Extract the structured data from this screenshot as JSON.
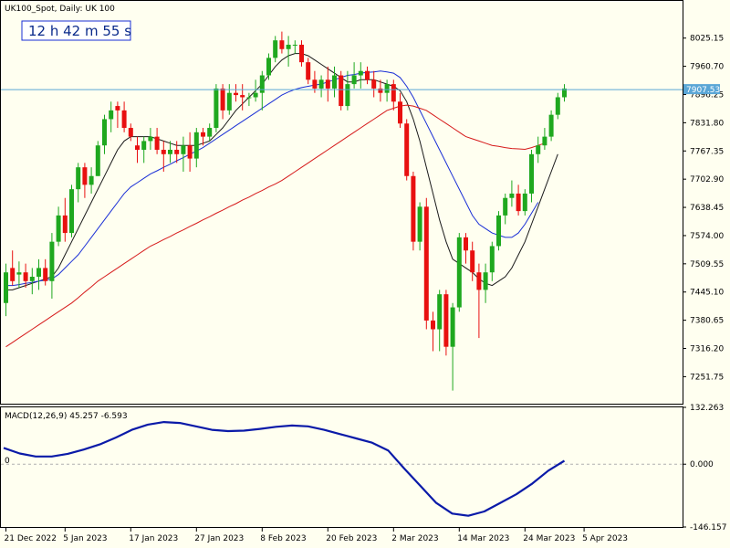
{
  "symbol_label": "UK100_Spot, Daily:  UK 100",
  "timer_label": "12 h 42 m 55 s",
  "colors": {
    "background": "#fffff0",
    "bull": "#1fa81f",
    "bear": "#e81010",
    "ma_fast": "#1a1a1a",
    "ma_mid": "#1a2fd6",
    "ma_slow": "#d61a1a",
    "macd": "#0a1aa8",
    "current_line": "#5aa6d6",
    "timer_border": "#1a2fd6"
  },
  "chart_data": [
    {
      "type": "candlestick",
      "y_ticks": [
        "8025.15",
        "7960.70",
        "7896.25",
        "7831.80",
        "7767.35",
        "7702.90",
        "7638.45",
        "7574.00",
        "7509.55",
        "7445.10",
        "7380.65",
        "7316.20",
        "7251.75"
      ],
      "ylim": [
        7190,
        8108
      ],
      "current_price": 7907.53,
      "current_price_label": "7907.53",
      "x_ticks": [
        {
          "label": "21 Dec 2022",
          "index": 0
        },
        {
          "label": "5 Jan 2023",
          "index": 9
        },
        {
          "label": "17 Jan 2023",
          "index": 19
        },
        {
          "label": "27 Jan 2023",
          "index": 29
        },
        {
          "label": "8 Feb 2023",
          "index": 39
        },
        {
          "label": "20 Feb 2023",
          "index": 49
        },
        {
          "label": "2 Mar 2023",
          "index": 59
        },
        {
          "label": "14 Mar 2023",
          "index": 69
        },
        {
          "label": "24 Mar 2023",
          "index": 79
        },
        {
          "label": "5 Apr 2023",
          "index": 88
        }
      ],
      "candles": [
        {
          "o": 7420,
          "h": 7510,
          "l": 7390,
          "c": 7490
        },
        {
          "o": 7500,
          "h": 7540,
          "l": 7460,
          "c": 7470
        },
        {
          "o": 7485,
          "h": 7515,
          "l": 7455,
          "c": 7490
        },
        {
          "o": 7490,
          "h": 7510,
          "l": 7455,
          "c": 7470
        },
        {
          "o": 7470,
          "h": 7500,
          "l": 7440,
          "c": 7480
        },
        {
          "o": 7480,
          "h": 7520,
          "l": 7450,
          "c": 7500
        },
        {
          "o": 7500,
          "h": 7520,
          "l": 7460,
          "c": 7470
        },
        {
          "o": 7470,
          "h": 7580,
          "l": 7430,
          "c": 7560
        },
        {
          "o": 7560,
          "h": 7640,
          "l": 7550,
          "c": 7620
        },
        {
          "o": 7620,
          "h": 7660,
          "l": 7560,
          "c": 7580
        },
        {
          "o": 7580,
          "h": 7690,
          "l": 7570,
          "c": 7680
        },
        {
          "o": 7680,
          "h": 7740,
          "l": 7650,
          "c": 7730
        },
        {
          "o": 7730,
          "h": 7740,
          "l": 7660,
          "c": 7690
        },
        {
          "o": 7690,
          "h": 7730,
          "l": 7670,
          "c": 7710
        },
        {
          "o": 7710,
          "h": 7790,
          "l": 7710,
          "c": 7780
        },
        {
          "o": 7780,
          "h": 7850,
          "l": 7760,
          "c": 7840
        },
        {
          "o": 7840,
          "h": 7880,
          "l": 7810,
          "c": 7860
        },
        {
          "o": 7870,
          "h": 7880,
          "l": 7820,
          "c": 7860
        },
        {
          "o": 7860,
          "h": 7880,
          "l": 7810,
          "c": 7820
        },
        {
          "o": 7820,
          "h": 7830,
          "l": 7790,
          "c": 7800
        },
        {
          "o": 7780,
          "h": 7800,
          "l": 7740,
          "c": 7770
        },
        {
          "o": 7770,
          "h": 7800,
          "l": 7740,
          "c": 7790
        },
        {
          "o": 7790,
          "h": 7820,
          "l": 7770,
          "c": 7800
        },
        {
          "o": 7800,
          "h": 7820,
          "l": 7760,
          "c": 7770
        },
        {
          "o": 7770,
          "h": 7790,
          "l": 7720,
          "c": 7760
        },
        {
          "o": 7760,
          "h": 7790,
          "l": 7740,
          "c": 7770
        },
        {
          "o": 7770,
          "h": 7790,
          "l": 7740,
          "c": 7760
        },
        {
          "o": 7760,
          "h": 7800,
          "l": 7720,
          "c": 7780
        },
        {
          "o": 7780,
          "h": 7810,
          "l": 7720,
          "c": 7750
        },
        {
          "o": 7750,
          "h": 7820,
          "l": 7730,
          "c": 7810
        },
        {
          "o": 7810,
          "h": 7820,
          "l": 7780,
          "c": 7800
        },
        {
          "o": 7800,
          "h": 7830,
          "l": 7790,
          "c": 7820
        },
        {
          "o": 7820,
          "h": 7920,
          "l": 7810,
          "c": 7910
        },
        {
          "o": 7910,
          "h": 7920,
          "l": 7840,
          "c": 7860
        },
        {
          "o": 7860,
          "h": 7920,
          "l": 7850,
          "c": 7900
        },
        {
          "o": 7900,
          "h": 7920,
          "l": 7880,
          "c": 7895
        },
        {
          "o": 7895,
          "h": 7920,
          "l": 7860,
          "c": 7890
        },
        {
          "o": 7890,
          "h": 7900,
          "l": 7870,
          "c": 7890
        },
        {
          "o": 7890,
          "h": 7930,
          "l": 7880,
          "c": 7900
        },
        {
          "o": 7900,
          "h": 7950,
          "l": 7860,
          "c": 7940
        },
        {
          "o": 7940,
          "h": 7990,
          "l": 7930,
          "c": 7980
        },
        {
          "o": 7980,
          "h": 8030,
          "l": 7970,
          "c": 8020
        },
        {
          "o": 8020,
          "h": 8040,
          "l": 7990,
          "c": 8000
        },
        {
          "o": 8000,
          "h": 8030,
          "l": 7960,
          "c": 8010
        },
        {
          "o": 8010,
          "h": 8020,
          "l": 7990,
          "c": 8010
        },
        {
          "o": 8010,
          "h": 8020,
          "l": 7960,
          "c": 7970
        },
        {
          "o": 7970,
          "h": 7980,
          "l": 7920,
          "c": 7930
        },
        {
          "o": 7930,
          "h": 7950,
          "l": 7900,
          "c": 7910
        },
        {
          "o": 7910,
          "h": 7940,
          "l": 7890,
          "c": 7930
        },
        {
          "o": 7930,
          "h": 7960,
          "l": 7880,
          "c": 7910
        },
        {
          "o": 7910,
          "h": 7960,
          "l": 7890,
          "c": 7940
        },
        {
          "o": 7940,
          "h": 7950,
          "l": 7860,
          "c": 7870
        },
        {
          "o": 7870,
          "h": 7950,
          "l": 7860,
          "c": 7920
        },
        {
          "o": 7920,
          "h": 7970,
          "l": 7910,
          "c": 7940
        },
        {
          "o": 7940,
          "h": 7970,
          "l": 7910,
          "c": 7950
        },
        {
          "o": 7950,
          "h": 7960,
          "l": 7920,
          "c": 7930
        },
        {
          "o": 7930,
          "h": 7950,
          "l": 7890,
          "c": 7910
        },
        {
          "o": 7910,
          "h": 7930,
          "l": 7880,
          "c": 7900
        },
        {
          "o": 7900,
          "h": 7930,
          "l": 7880,
          "c": 7920
        },
        {
          "o": 7920,
          "h": 7930,
          "l": 7860,
          "c": 7880
        },
        {
          "o": 7880,
          "h": 7900,
          "l": 7820,
          "c": 7830
        },
        {
          "o": 7830,
          "h": 7840,
          "l": 7700,
          "c": 7710
        },
        {
          "o": 7710,
          "h": 7720,
          "l": 7540,
          "c": 7560
        },
        {
          "o": 7560,
          "h": 7650,
          "l": 7540,
          "c": 7640
        },
        {
          "o": 7640,
          "h": 7660,
          "l": 7360,
          "c": 7380
        },
        {
          "o": 7380,
          "h": 7400,
          "l": 7310,
          "c": 7360
        },
        {
          "o": 7360,
          "h": 7450,
          "l": 7310,
          "c": 7440
        },
        {
          "o": 7440,
          "h": 7450,
          "l": 7300,
          "c": 7320
        },
        {
          "o": 7320,
          "h": 7420,
          "l": 7220,
          "c": 7410
        },
        {
          "o": 7410,
          "h": 7580,
          "l": 7400,
          "c": 7570
        },
        {
          "o": 7570,
          "h": 7580,
          "l": 7510,
          "c": 7540
        },
        {
          "o": 7540,
          "h": 7560,
          "l": 7470,
          "c": 7490
        },
        {
          "o": 7490,
          "h": 7510,
          "l": 7340,
          "c": 7450
        },
        {
          "o": 7450,
          "h": 7510,
          "l": 7420,
          "c": 7490
        },
        {
          "o": 7490,
          "h": 7560,
          "l": 7470,
          "c": 7550
        },
        {
          "o": 7550,
          "h": 7630,
          "l": 7540,
          "c": 7620
        },
        {
          "o": 7620,
          "h": 7670,
          "l": 7600,
          "c": 7660
        },
        {
          "o": 7660,
          "h": 7700,
          "l": 7640,
          "c": 7670
        },
        {
          "o": 7670,
          "h": 7690,
          "l": 7620,
          "c": 7630
        },
        {
          "o": 7630,
          "h": 7680,
          "l": 7620,
          "c": 7670
        },
        {
          "o": 7670,
          "h": 7770,
          "l": 7650,
          "c": 7760
        },
        {
          "o": 7760,
          "h": 7800,
          "l": 7740,
          "c": 7780
        },
        {
          "o": 7780,
          "h": 7820,
          "l": 7770,
          "c": 7800
        },
        {
          "o": 7800,
          "h": 7860,
          "l": 7790,
          "c": 7850
        },
        {
          "o": 7850,
          "h": 7900,
          "l": 7840,
          "c": 7890
        },
        {
          "o": 7890,
          "h": 7920,
          "l": 7880,
          "c": 7910
        }
      ],
      "series": [
        {
          "values": [
            7450,
            7450,
            7455,
            7460,
            7465,
            7470,
            7475,
            7480,
            7500,
            7530,
            7560,
            7590,
            7620,
            7650,
            7680,
            7710,
            7740,
            7770,
            7790,
            7800,
            7800,
            7800,
            7800,
            7795,
            7790,
            7785,
            7780,
            7780,
            7780,
            7780,
            7785,
            7790,
            7805,
            7820,
            7840,
            7860,
            7875,
            7890,
            7905,
            7920,
            7940,
            7960,
            7975,
            7985,
            7990,
            7990,
            7985,
            7975,
            7965,
            7955,
            7945,
            7935,
            7925,
            7925,
            7930,
            7930,
            7930,
            7925,
            7920,
            7915,
            7905,
            7880,
            7840,
            7790,
            7730,
            7670,
            7610,
            7560,
            7520,
            7510,
            7500,
            7490,
            7475,
            7465,
            7460,
            7470,
            7480,
            7500,
            7530,
            7560,
            7600,
            7640,
            7680,
            7720,
            7760
          ]
        },
        {
          "values": [
            7460,
            7460,
            7462,
            7465,
            7467,
            7470,
            7472,
            7475,
            7485,
            7500,
            7515,
            7530,
            7550,
            7570,
            7590,
            7610,
            7630,
            7650,
            7670,
            7685,
            7695,
            7705,
            7715,
            7722,
            7730,
            7737,
            7745,
            7752,
            7760,
            7767,
            7775,
            7785,
            7795,
            7805,
            7815,
            7825,
            7835,
            7845,
            7855,
            7865,
            7875,
            7885,
            7895,
            7902,
            7908,
            7912,
            7915,
            7918,
            7920,
            7925,
            7930,
            7935,
            7940,
            7942,
            7945,
            7947,
            7948,
            7950,
            7948,
            7945,
            7935,
            7915,
            7890,
            7860,
            7830,
            7800,
            7770,
            7740,
            7710,
            7680,
            7650,
            7620,
            7600,
            7590,
            7580,
            7575,
            7570,
            7570,
            7580,
            7600,
            7625,
            7650
          ]
        },
        {
          "values": [
            7320,
            7330,
            7340,
            7350,
            7360,
            7370,
            7380,
            7390,
            7400,
            7410,
            7420,
            7432,
            7445,
            7457,
            7470,
            7480,
            7490,
            7500,
            7510,
            7520,
            7530,
            7540,
            7550,
            7557,
            7565,
            7572,
            7580,
            7587,
            7595,
            7602,
            7610,
            7617,
            7625,
            7632,
            7640,
            7647,
            7655,
            7662,
            7670,
            7677,
            7685,
            7692,
            7700,
            7710,
            7720,
            7730,
            7740,
            7750,
            7760,
            7770,
            7780,
            7790,
            7800,
            7810,
            7820,
            7830,
            7840,
            7850,
            7860,
            7865,
            7870,
            7872,
            7870,
            7865,
            7860,
            7850,
            7840,
            7830,
            7820,
            7810,
            7800,
            7795,
            7790,
            7785,
            7780,
            7778,
            7775,
            7773,
            7772,
            7771,
            7775,
            7780,
            7785
          ]
        }
      ]
    },
    {
      "type": "line",
      "title": "MACD(12,26,9) 45.257 -6.593",
      "y_ticks": [
        "132.263",
        "0.000",
        "-146.157"
      ],
      "zero_label": "0",
      "ylim": [
        -146.157,
        132.263
      ],
      "series": [
        {
          "values": [
            38,
            25,
            18,
            18,
            24,
            34,
            46,
            62,
            80,
            92,
            98,
            96,
            88,
            80,
            77,
            78,
            82,
            87,
            90,
            88,
            80,
            70,
            60,
            50,
            32,
            -10,
            -50,
            -90,
            -115,
            -120,
            -110,
            -90,
            -70,
            -45,
            -15,
            8
          ]
        }
      ]
    }
  ]
}
